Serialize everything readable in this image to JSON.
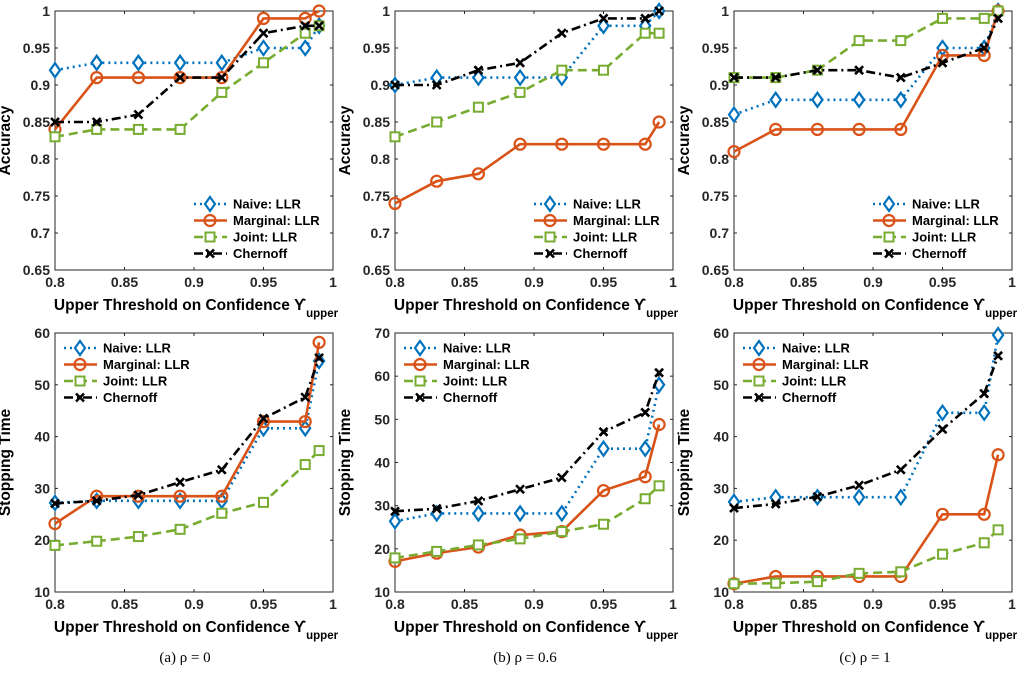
{
  "figure": {
    "captions": [
      "(a) ρ = 0",
      "(b) ρ = 0.6",
      "(c) ρ = 1"
    ]
  },
  "styles": {
    "Naive: LLR": {
      "color": "#0072BD",
      "dash": "dotted",
      "marker": "diamond-icon"
    },
    "Marginal: LLR": {
      "color": "#D95319",
      "dash": "solid",
      "marker": "circle-icon"
    },
    "Joint: LLR": {
      "color": "#77AC30",
      "dash": "dashed",
      "marker": "square-icon"
    },
    "Chernoff": {
      "color": "#000000",
      "dash": "dashdot",
      "marker": "x-icon"
    }
  },
  "chart_data": [
    {
      "type": "line",
      "panel": "a",
      "xlabel": "Upper Threshold on Confidence ϒ",
      "xlabel_sub": "upper",
      "ylabel": "Accuracy",
      "xlim": [
        0.8,
        1.0
      ],
      "ylim": [
        0.65,
        1.0
      ],
      "xticks": [
        0.8,
        0.85,
        0.9,
        0.95,
        1
      ],
      "yticks": [
        0.65,
        0.7,
        0.75,
        0.8,
        0.85,
        0.9,
        0.95,
        1
      ],
      "x": [
        0.8,
        0.83,
        0.86,
        0.89,
        0.92,
        0.95,
        0.98,
        0.99
      ],
      "legend_position": "bottom-right",
      "series": [
        {
          "name": "Naive: LLR",
          "values": [
            0.92,
            0.93,
            0.93,
            0.93,
            0.93,
            0.95,
            0.95,
            0.98
          ]
        },
        {
          "name": "Marginal: LLR",
          "values": [
            0.84,
            0.91,
            0.91,
            0.91,
            0.91,
            0.99,
            0.99,
            1.0
          ]
        },
        {
          "name": "Joint: LLR",
          "values": [
            0.83,
            0.84,
            0.84,
            0.84,
            0.89,
            0.93,
            0.97,
            0.98
          ]
        },
        {
          "name": "Chernoff",
          "values": [
            0.85,
            0.85,
            0.86,
            0.91,
            0.91,
            0.97,
            0.98,
            0.98
          ]
        }
      ]
    },
    {
      "type": "line",
      "panel": "b",
      "xlabel": "Upper Threshold on Confidence ϒ",
      "xlabel_sub": "upper",
      "ylabel": "Accuracy",
      "xlim": [
        0.8,
        1.0
      ],
      "ylim": [
        0.65,
        1.0
      ],
      "xticks": [
        0.8,
        0.85,
        0.9,
        0.95,
        1
      ],
      "yticks": [
        0.65,
        0.7,
        0.75,
        0.8,
        0.85,
        0.9,
        0.95,
        1
      ],
      "x": [
        0.8,
        0.83,
        0.86,
        0.89,
        0.92,
        0.95,
        0.98,
        0.99
      ],
      "legend_position": "bottom-right",
      "series": [
        {
          "name": "Naive: LLR",
          "values": [
            0.9,
            0.91,
            0.91,
            0.91,
            0.91,
            0.98,
            0.98,
            1.0
          ]
        },
        {
          "name": "Marginal: LLR",
          "values": [
            0.74,
            0.77,
            0.78,
            0.82,
            0.82,
            0.82,
            0.82,
            0.85
          ]
        },
        {
          "name": "Joint: LLR",
          "values": [
            0.83,
            0.85,
            0.87,
            0.89,
            0.92,
            0.92,
            0.97,
            0.97
          ]
        },
        {
          "name": "Chernoff",
          "values": [
            0.9,
            0.9,
            0.92,
            0.93,
            0.97,
            0.99,
            0.99,
            1.0
          ]
        }
      ]
    },
    {
      "type": "line",
      "panel": "c",
      "xlabel": "Upper Threshold on Confidence ϒ",
      "xlabel_sub": "upper",
      "ylabel": "Accuracy",
      "xlim": [
        0.8,
        1.0
      ],
      "ylim": [
        0.65,
        1.0
      ],
      "xticks": [
        0.8,
        0.85,
        0.9,
        0.95,
        1
      ],
      "yticks": [
        0.65,
        0.7,
        0.75,
        0.8,
        0.85,
        0.9,
        0.95,
        1
      ],
      "x": [
        0.8,
        0.83,
        0.86,
        0.89,
        0.92,
        0.95,
        0.98,
        0.99
      ],
      "legend_position": "bottom-right",
      "series": [
        {
          "name": "Naive: LLR",
          "values": [
            0.86,
            0.88,
            0.88,
            0.88,
            0.88,
            0.95,
            0.95,
            1.0
          ]
        },
        {
          "name": "Marginal: LLR",
          "values": [
            0.81,
            0.84,
            0.84,
            0.84,
            0.84,
            0.94,
            0.94,
            1.0
          ]
        },
        {
          "name": "Joint: LLR",
          "values": [
            0.91,
            0.91,
            0.92,
            0.96,
            0.96,
            0.99,
            0.99,
            1.0
          ]
        },
        {
          "name": "Chernoff",
          "values": [
            0.91,
            0.91,
            0.92,
            0.92,
            0.91,
            0.93,
            0.95,
            0.99
          ]
        }
      ]
    },
    {
      "type": "line",
      "panel": "a",
      "xlabel": "Upper Threshold on Confidence ϒ",
      "xlabel_sub": "upper",
      "ylabel": "Stopping Time",
      "xlim": [
        0.8,
        1.0
      ],
      "ylim": [
        10,
        60
      ],
      "xticks": [
        0.8,
        0.85,
        0.9,
        0.95,
        1
      ],
      "yticks": [
        10,
        20,
        30,
        40,
        50,
        60
      ],
      "x": [
        0.8,
        0.83,
        0.86,
        0.89,
        0.92,
        0.95,
        0.98,
        0.99
      ],
      "legend_position": "top-left",
      "series": [
        {
          "name": "Naive: LLR",
          "values": [
            27.2,
            27.6,
            27.6,
            27.6,
            27.6,
            41.6,
            41.6,
            54.6
          ]
        },
        {
          "name": "Marginal: LLR",
          "values": [
            23.2,
            28.5,
            28.5,
            28.5,
            28.5,
            42.9,
            42.9,
            58.2
          ]
        },
        {
          "name": "Joint: LLR",
          "values": [
            19.0,
            19.8,
            20.7,
            22.1,
            25.2,
            27.3,
            34.6,
            37.3
          ]
        },
        {
          "name": "Chernoff",
          "values": [
            27.1,
            27.6,
            28.7,
            31.2,
            33.6,
            43.5,
            47.6,
            55.2
          ]
        }
      ]
    },
    {
      "type": "line",
      "panel": "b",
      "xlabel": "Upper Threshold on Confidence ϒ",
      "xlabel_sub": "upper",
      "ylabel": "Stopping Time",
      "xlim": [
        0.8,
        1.0
      ],
      "ylim": [
        10,
        70
      ],
      "xticks": [
        0.8,
        0.85,
        0.9,
        0.95,
        1
      ],
      "yticks": [
        10,
        20,
        30,
        40,
        50,
        60,
        70
      ],
      "x": [
        0.8,
        0.83,
        0.86,
        0.89,
        0.92,
        0.95,
        0.98,
        0.99
      ],
      "legend_position": "top-left",
      "series": [
        {
          "name": "Naive: LLR",
          "values": [
            26.4,
            28.2,
            28.2,
            28.2,
            28.2,
            43.2,
            43.2,
            58.0
          ]
        },
        {
          "name": "Marginal: LLR",
          "values": [
            17.1,
            19.0,
            20.4,
            23.2,
            24.0,
            33.5,
            36.7,
            48.8
          ]
        },
        {
          "name": "Joint: LLR",
          "values": [
            17.9,
            19.4,
            20.9,
            22.3,
            24.0,
            25.7,
            31.6,
            34.6
          ]
        },
        {
          "name": "Chernoff",
          "values": [
            28.7,
            29.3,
            31.1,
            33.8,
            36.5,
            47.1,
            51.6,
            60.8
          ]
        }
      ]
    },
    {
      "type": "line",
      "panel": "c",
      "xlabel": "Upper Threshold on Confidence ϒ",
      "xlabel_sub": "upper",
      "ylabel": "Stopping Time",
      "xlim": [
        0.8,
        1.0
      ],
      "ylim": [
        10,
        60
      ],
      "xticks": [
        0.8,
        0.85,
        0.9,
        0.95,
        1
      ],
      "yticks": [
        10,
        20,
        30,
        40,
        50,
        60
      ],
      "x": [
        0.8,
        0.83,
        0.86,
        0.89,
        0.92,
        0.95,
        0.98,
        0.99
      ],
      "legend_position": "top-left",
      "series": [
        {
          "name": "Naive: LLR",
          "values": [
            27.4,
            28.3,
            28.3,
            28.3,
            28.3,
            44.6,
            44.6,
            59.6
          ]
        },
        {
          "name": "Marginal: LLR",
          "values": [
            11.6,
            13.0,
            13.0,
            13.0,
            13.0,
            25.0,
            25.0,
            36.5
          ]
        },
        {
          "name": "Joint: LLR",
          "values": [
            11.6,
            11.7,
            12.0,
            13.6,
            13.9,
            17.3,
            19.5,
            22.0
          ]
        },
        {
          "name": "Chernoff",
          "values": [
            26.2,
            27.0,
            28.4,
            30.6,
            33.6,
            41.4,
            48.3,
            55.6
          ]
        }
      ]
    }
  ]
}
